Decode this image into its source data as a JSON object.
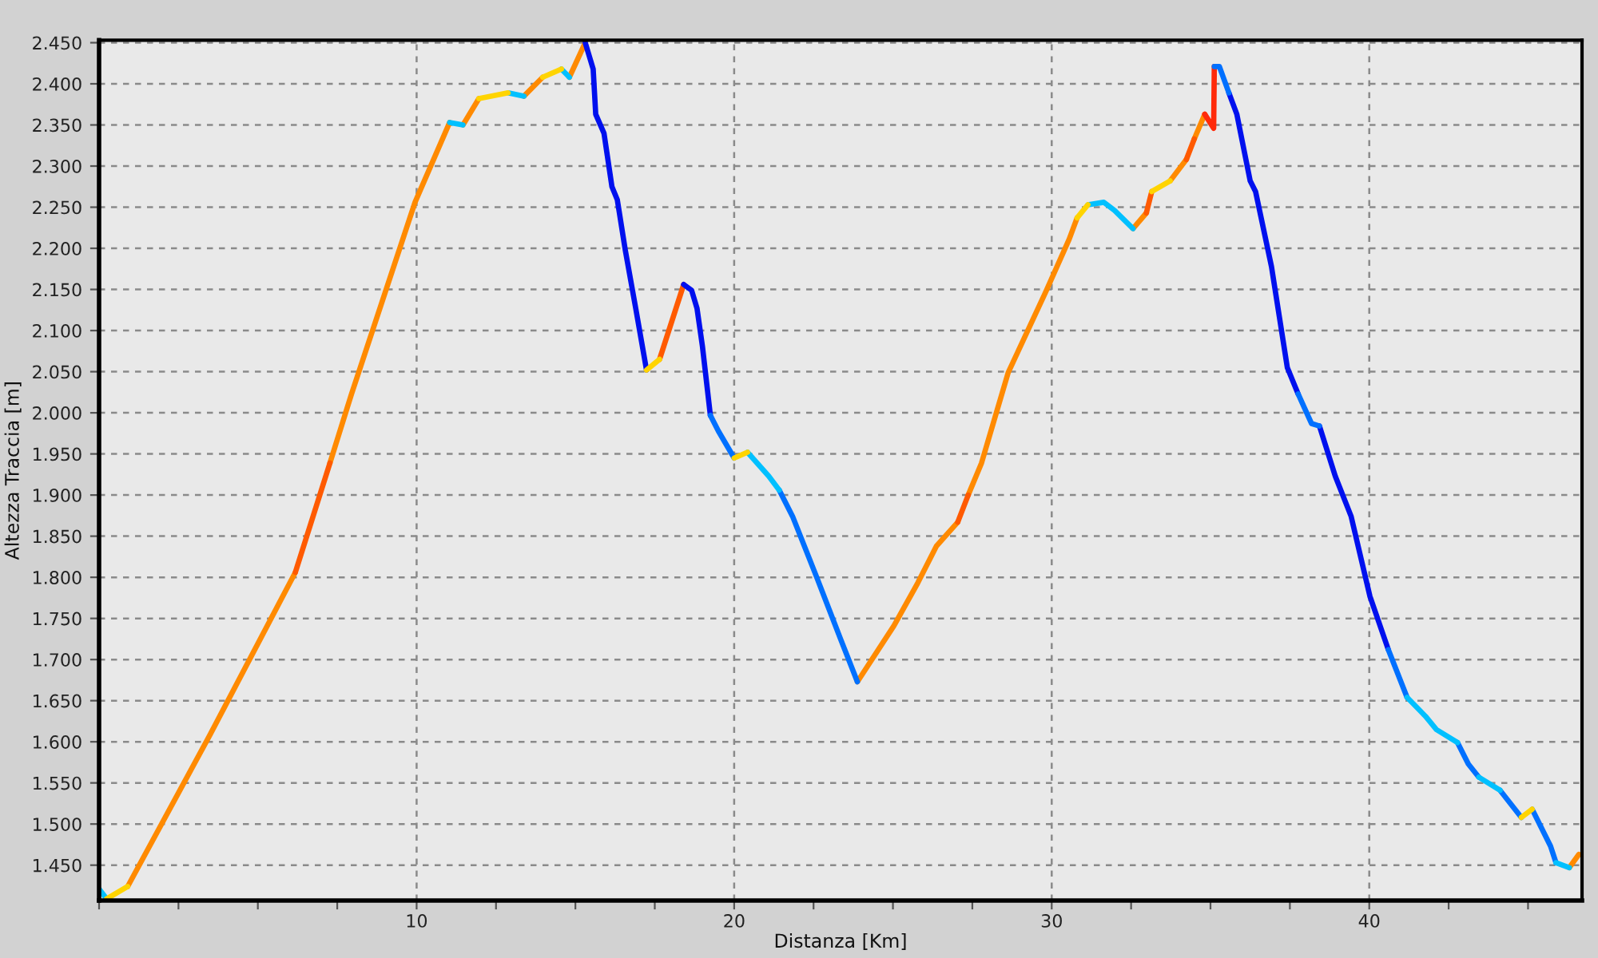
{
  "chart_data": {
    "type": "line",
    "xlabel": "Distanza [Km]",
    "ylabel": "Altezza Traccia [m]",
    "xlim": [
      0,
      46.7
    ],
    "ylim": [
      1407,
      2453
    ],
    "xticks": [
      {
        "value": 0,
        "label": null
      },
      {
        "value": 2.5,
        "label": null
      },
      {
        "value": 5,
        "label": null
      },
      {
        "value": 7.5,
        "label": null
      },
      10,
      {
        "value": 12.5,
        "label": null
      },
      {
        "value": 15,
        "label": null
      },
      {
        "value": 17.5,
        "label": null
      },
      20,
      {
        "value": 22.5,
        "label": null
      },
      {
        "value": 25,
        "label": null
      },
      {
        "value": 27.5,
        "label": null
      },
      30,
      {
        "value": 32.5,
        "label": null
      },
      {
        "value": 35,
        "label": null
      },
      {
        "value": 37.5,
        "label": null
      },
      40,
      {
        "value": 42.5,
        "label": null
      },
      {
        "value": 45,
        "label": null
      }
    ],
    "yticks": [
      {
        "value": 1450,
        "label": "1.450"
      },
      {
        "value": 1500,
        "label": "1.500"
      },
      {
        "value": 1550,
        "label": "1.550"
      },
      {
        "value": 1600,
        "label": "1.600"
      },
      {
        "value": 1650,
        "label": "1.650"
      },
      {
        "value": 1700,
        "label": "1.700"
      },
      {
        "value": 1750,
        "label": "1.750"
      },
      {
        "value": 1800,
        "label": "1.800"
      },
      {
        "value": 1850,
        "label": "1.850"
      },
      {
        "value": 1900,
        "label": "1.900"
      },
      {
        "value": 1950,
        "label": "1.950"
      },
      {
        "value": 2000,
        "label": "2.000"
      },
      {
        "value": 2050,
        "label": "2.050"
      },
      {
        "value": 2100,
        "label": "2.100"
      },
      {
        "value": 2150,
        "label": "2.150"
      },
      {
        "value": 2200,
        "label": "2.200"
      },
      {
        "value": 2250,
        "label": "2.250"
      },
      {
        "value": 2300,
        "label": "2.300"
      },
      {
        "value": 2350,
        "label": "2.350"
      },
      {
        "value": 2400,
        "label": "2.400"
      },
      {
        "value": 2450,
        "label": "2.450"
      }
    ],
    "grid": true,
    "series": [
      {
        "color": "#ff8a00",
        "x": [
          0.9,
          3.5,
          6.18,
          null,
          7.27,
          7.95,
          9.95,
          11.04,
          null,
          11.46,
          11.96,
          null,
          13.38,
          13.97,
          null,
          14.81,
          15.31,
          null,
          23.88,
          25.03,
          25.78,
          26.37,
          27.04,
          null,
          27.37,
          27.79,
          28.63,
          29.8,
          30.55,
          30.8,
          null,
          32.56,
          32.98,
          null,
          33.73,
          34.24,
          null,
          34.49,
          34.82,
          null,
          46.3,
          46.6
        ],
        "values": [
          1424,
          1609,
          1806,
          null,
          1939,
          2023,
          2256,
          2353,
          null,
          2350,
          2382,
          null,
          2385,
          2408,
          null,
          2408,
          2450,
          null,
          1673,
          1741,
          1793,
          1838,
          1867,
          null,
          1900,
          1939,
          2049,
          2146,
          2211,
          2237,
          null,
          2224,
          2243,
          null,
          2282,
          2308,
          null,
          2333,
          2363,
          null,
          1447,
          1463
        ]
      },
      {
        "color": "#ff5a00",
        "x": [
          6.18,
          7.27,
          null,
          17.65,
          18.41,
          null,
          27.04,
          27.37,
          null,
          32.98,
          33.15,
          null,
          34.24,
          34.49
        ],
        "values": [
          1806,
          1939,
          null,
          2065,
          2156,
          null,
          1867,
          1900,
          null,
          2243,
          2269,
          null,
          2308,
          2333
        ]
      },
      {
        "color": "#ff2a0a",
        "x": [
          34.82,
          35.1,
          35.12
        ],
        "values": [
          2363,
          2346,
          2421
        ]
      },
      {
        "color": "#0010ee",
        "x": [
          15.31,
          15.56,
          15.64,
          15.9,
          16.15,
          16.32,
          16.57,
          16.9,
          17.24,
          null,
          18.41,
          18.66,
          18.83,
          19.0,
          19.25,
          null,
          35.58,
          35.83,
          36.25,
          36.42,
          36.92,
          37.42,
          37.76,
          null,
          38.43,
          38.93,
          39.43,
          40.02,
          40.6
        ],
        "values": [
          2450,
          2418,
          2363,
          2340,
          2275,
          2259,
          2198,
          2127,
          2052,
          null,
          2156,
          2149,
          2127,
          2081,
          1997,
          null,
          2389,
          2363,
          2282,
          2269,
          2178,
          2055,
          2023,
          null,
          1984,
          1923,
          1874,
          1777,
          1712
        ]
      },
      {
        "color": "#0070ff",
        "x": [
          19.25,
          19.5,
          20.0,
          null,
          21.42,
          21.84,
          22.6,
          23.35,
          23.88,
          null,
          35.12,
          35.28,
          35.58,
          null,
          37.76,
          38.18,
          38.43,
          null,
          40.6,
          41.19,
          null,
          42.78,
          43.12,
          43.45,
          null,
          44.12,
          44.79,
          null,
          45.13,
          45.71,
          45.88
        ],
        "values": [
          1997,
          1978,
          1945,
          null,
          1906,
          1874,
          1800,
          1725,
          1673,
          null,
          2421,
          2421,
          2389,
          null,
          2023,
          1987,
          1984,
          null,
          1712,
          1654,
          null,
          1599,
          1573,
          1557,
          null,
          1541,
          1508,
          null,
          1518,
          1473,
          1453
        ]
      },
      {
        "color": "#00c0ff",
        "x": [
          0,
          0.24,
          null,
          11.04,
          11.46,
          null,
          12.88,
          13.38,
          null,
          14.56,
          14.81,
          null,
          20.42,
          21.09,
          21.42,
          null,
          31.14,
          31.64,
          31.98,
          32.56,
          null,
          41.19,
          41.77,
          42.11,
          42.78,
          null,
          43.45,
          44.12,
          null,
          45.88,
          46.3
        ],
        "values": [
          1421,
          1409,
          null,
          2353,
          2350,
          null,
          2389,
          2385,
          null,
          2418,
          2408,
          null,
          1952,
          1923,
          1906,
          null,
          2253,
          2256,
          2246,
          2224,
          null,
          1654,
          1631,
          1615,
          1599,
          null,
          1557,
          1541,
          null,
          1453,
          1447
        ]
      },
      {
        "color": "#ffd400",
        "x": [
          0.24,
          0.9,
          null,
          11.96,
          12.88,
          null,
          13.97,
          14.56,
          null,
          17.24,
          17.65,
          null,
          20.0,
          20.42,
          null,
          30.8,
          31.14,
          null,
          33.15,
          33.73,
          null,
          44.79,
          45.13
        ],
        "values": [
          1409,
          1424,
          null,
          2382,
          2389,
          null,
          2408,
          2418,
          null,
          2052,
          2065,
          null,
          1945,
          1952,
          null,
          2237,
          2253,
          null,
          2269,
          2282,
          null,
          1508,
          1518
        ]
      }
    ]
  }
}
